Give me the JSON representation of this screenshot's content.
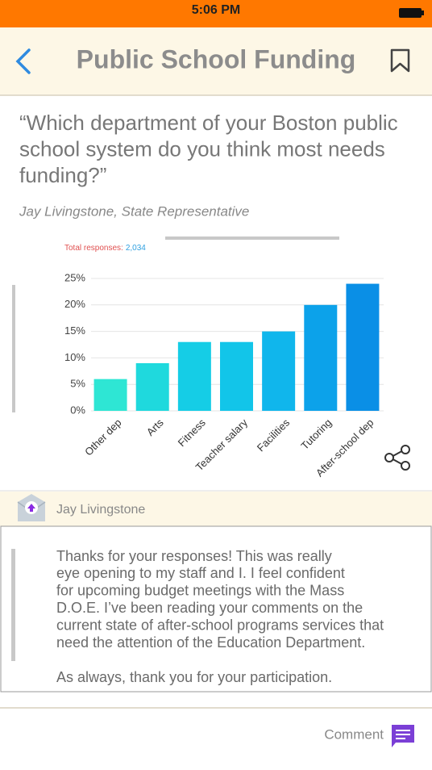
{
  "status_bar": {
    "time": "5:06 PM"
  },
  "header": {
    "title": "Public School Funding"
  },
  "question": {
    "lines": [
      "“Which department of your Boston public",
      "school system do you think most needs",
      "funding?”"
    ],
    "author": "Jay Livingstone, State Representative"
  },
  "chart_data": {
    "type": "bar",
    "total_label": "Total responses:",
    "total_value": "2,034",
    "categories": [
      "Other dep",
      "Arts",
      "Fitness",
      "Teacher salary",
      "Facilities",
      "Tutoring",
      "After-school dep"
    ],
    "values": [
      6,
      9,
      13,
      13,
      15,
      20,
      24
    ],
    "colors": [
      "#2ee6d4",
      "#1fd9dd",
      "#15cde6",
      "#12c5e9",
      "#10b6ec",
      "#0ca2ea",
      "#0a8fe6"
    ],
    "ylim": [
      0,
      25
    ],
    "yticks": [
      {
        "value": 0,
        "label": "0%"
      },
      {
        "value": 5,
        "label": "5%"
      },
      {
        "value": 10,
        "label": "10%"
      },
      {
        "value": 15,
        "label": "15%"
      },
      {
        "value": 20,
        "label": "20%"
      },
      {
        "value": 25,
        "label": "25%"
      }
    ],
    "grid": true
  },
  "message": {
    "author": "Jay Livingstone",
    "lines": [
      "Thanks for your responses! This was really",
      "eye opening to my staff and I. I feel confident",
      "for upcoming budget meetings with the Mass",
      "D.O.E. I’ve been reading your comments on the",
      "current state of after-school programs services that",
      "need the attention of the Education Department."
    ],
    "closing": "As always, thank you for your participation."
  },
  "footer": {
    "action": "Comment"
  }
}
